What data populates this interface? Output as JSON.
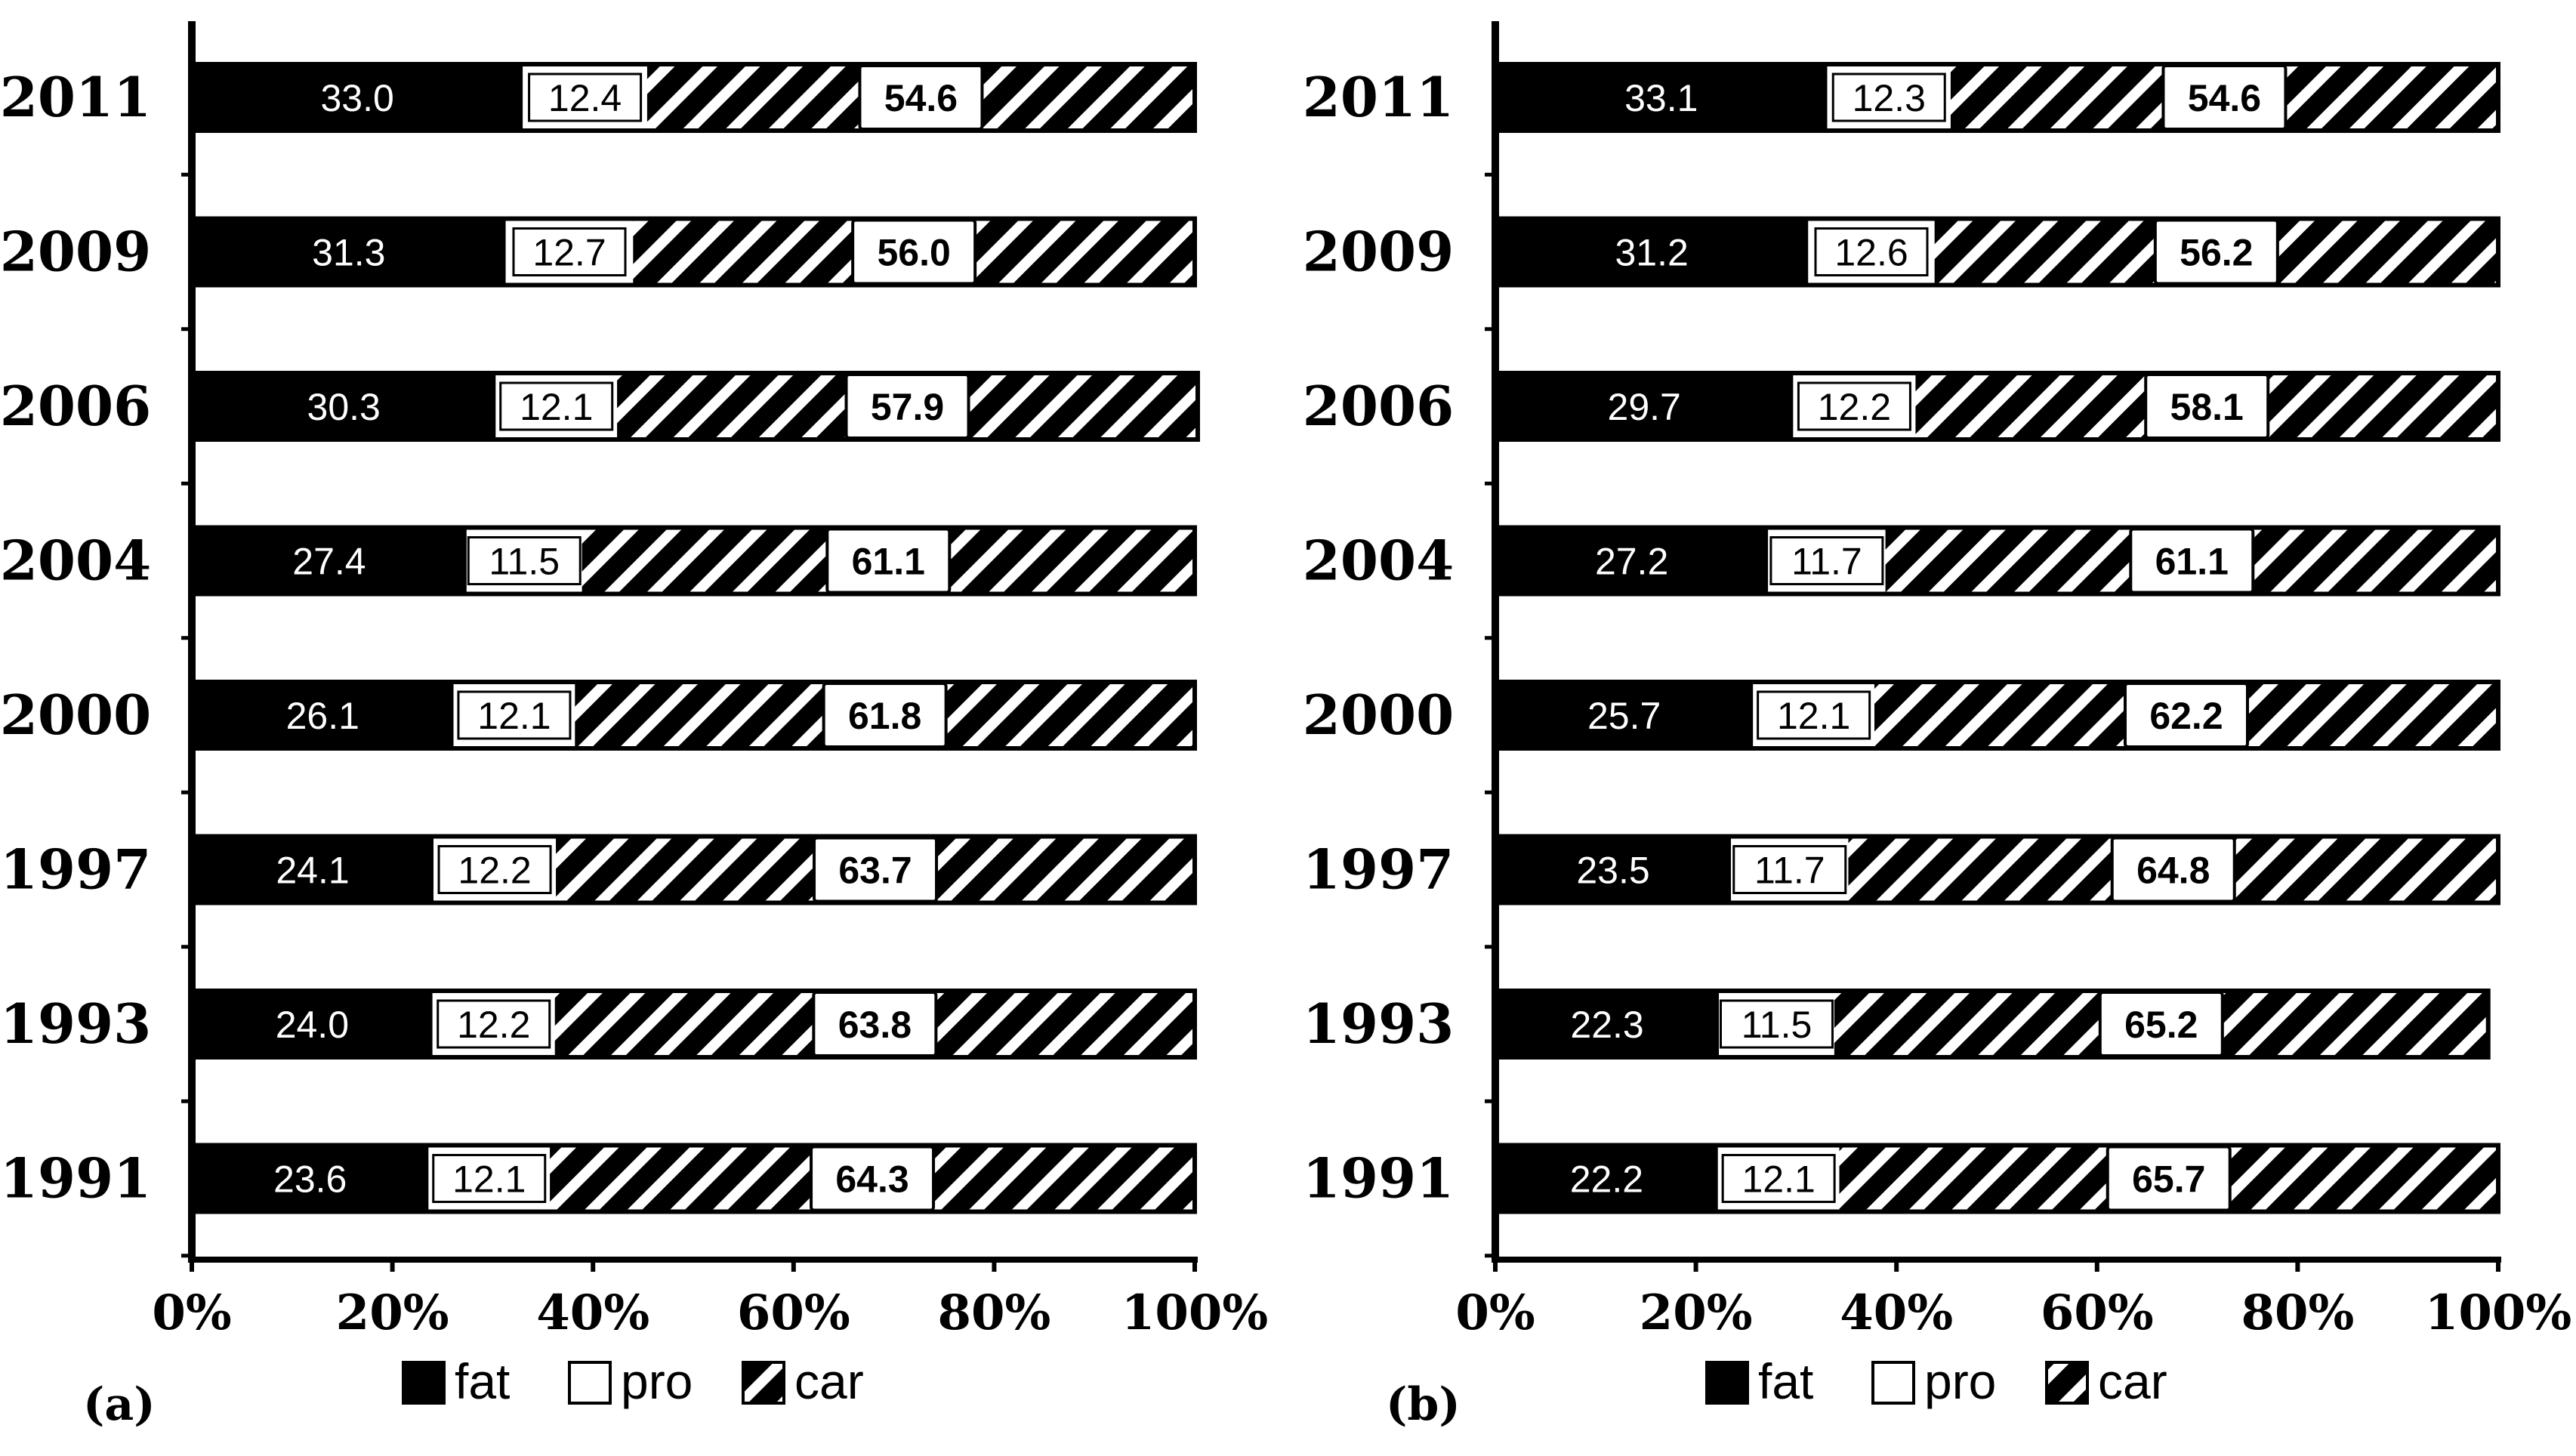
{
  "chart_data": [
    {
      "type": "bar",
      "orientation": "horizontal",
      "stacked": "percent",
      "panel_label": "(a)",
      "categories": [
        "2011",
        "2009",
        "2006",
        "2004",
        "2000",
        "1997",
        "1993",
        "1991"
      ],
      "series": [
        {
          "name": "fat",
          "values": [
            33.0,
            31.3,
            30.3,
            27.4,
            26.1,
            24.1,
            24.0,
            23.6
          ]
        },
        {
          "name": "pro",
          "values": [
            12.4,
            12.7,
            12.1,
            11.5,
            12.1,
            12.2,
            12.2,
            12.1
          ]
        },
        {
          "name": "car",
          "values": [
            54.6,
            56.0,
            57.9,
            61.1,
            61.8,
            63.7,
            63.8,
            64.3
          ]
        }
      ],
      "xlim": [
        0,
        100
      ],
      "xticks": [
        "0%",
        "20%",
        "40%",
        "60%",
        "80%",
        "100%"
      ],
      "legend": [
        "fat",
        "pro",
        "car"
      ],
      "legend_position": "bottom"
    },
    {
      "type": "bar",
      "orientation": "horizontal",
      "stacked": "percent",
      "panel_label": "(b)",
      "categories": [
        "2011",
        "2009",
        "2006",
        "2004",
        "2000",
        "1997",
        "1993",
        "1991"
      ],
      "series": [
        {
          "name": "fat",
          "values": [
            33.1,
            31.2,
            29.7,
            27.2,
            25.7,
            23.5,
            22.3,
            22.2
          ]
        },
        {
          "name": "pro",
          "values": [
            12.3,
            12.6,
            12.2,
            11.7,
            12.1,
            11.7,
            11.5,
            12.1
          ]
        },
        {
          "name": "car",
          "values": [
            54.6,
            56.2,
            58.1,
            61.1,
            62.2,
            64.8,
            65.2,
            65.7
          ]
        }
      ],
      "xlim": [
        0,
        100
      ],
      "xticks": [
        "0%",
        "20%",
        "40%",
        "60%",
        "80%",
        "100%"
      ],
      "legend": [
        "fat",
        "pro",
        "car"
      ],
      "legend_position": "bottom"
    }
  ],
  "colors": {
    "fat": "#000000",
    "pro": "#ffffff",
    "car_hatch_bg": "#ffffff",
    "car_hatch_fg": "#000000"
  }
}
